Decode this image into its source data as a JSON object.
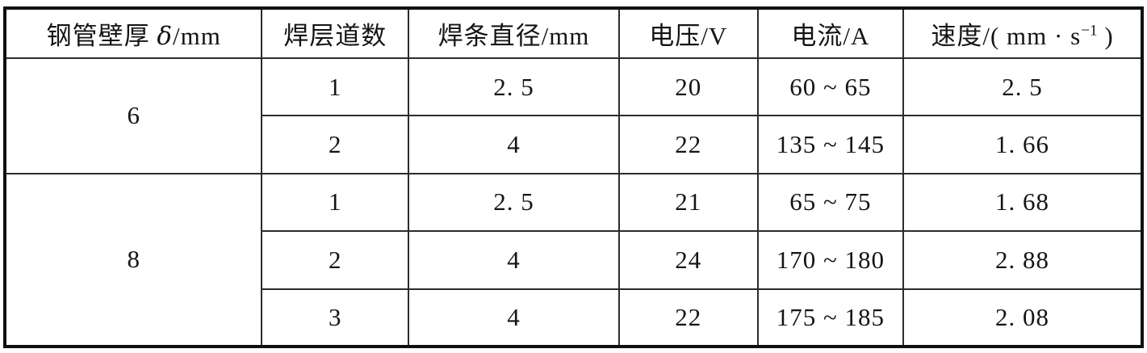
{
  "table": {
    "headers": {
      "thickness": {
        "prefix": "钢管壁厚 ",
        "symbol": "δ",
        "suffix": "/mm"
      },
      "passes": "焊层道数",
      "diameter": "焊条直径/mm",
      "voltage": "电压/V",
      "current": "电流/A",
      "speed": {
        "prefix": "速度/( mm · s",
        "sup": "−1",
        "suffix": " )"
      }
    },
    "groups": [
      {
        "thickness": "6",
        "rows": [
          {
            "pass": "1",
            "diameter": "2. 5",
            "voltage": "20",
            "current": "60 ~ 65",
            "speed": "2. 5"
          },
          {
            "pass": "2",
            "diameter": "4",
            "voltage": "22",
            "current": "135 ~ 145",
            "speed": "1. 66"
          }
        ]
      },
      {
        "thickness": "8",
        "rows": [
          {
            "pass": "1",
            "diameter": "2. 5",
            "voltage": "21",
            "current": "65 ~ 75",
            "speed": "1. 68"
          },
          {
            "pass": "2",
            "diameter": "4",
            "voltage": "24",
            "current": "170 ~ 180",
            "speed": "2. 88"
          },
          {
            "pass": "3",
            "diameter": "4",
            "voltage": "22",
            "current": "175 ~ 185",
            "speed": "2. 08"
          }
        ]
      }
    ],
    "colors": {
      "border": "#0f0f0f",
      "inner_border": "#2b2b2b",
      "background": "#ffffff",
      "text": "#141414"
    }
  },
  "chart_data": {
    "type": "table",
    "columns": [
      "钢管壁厚 δ/mm",
      "焊层道数",
      "焊条直径/mm",
      "电压/V",
      "电流/A",
      "速度/(mm·s⁻¹)"
    ],
    "rows": [
      [
        "6",
        "1",
        "2.5",
        "20",
        "60~65",
        "2.5"
      ],
      [
        "6",
        "2",
        "4",
        "22",
        "135~145",
        "1.66"
      ],
      [
        "8",
        "1",
        "2.5",
        "21",
        "65~75",
        "1.68"
      ],
      [
        "8",
        "2",
        "4",
        "24",
        "170~180",
        "2.88"
      ],
      [
        "8",
        "3",
        "4",
        "22",
        "175~185",
        "2.08"
      ]
    ]
  }
}
